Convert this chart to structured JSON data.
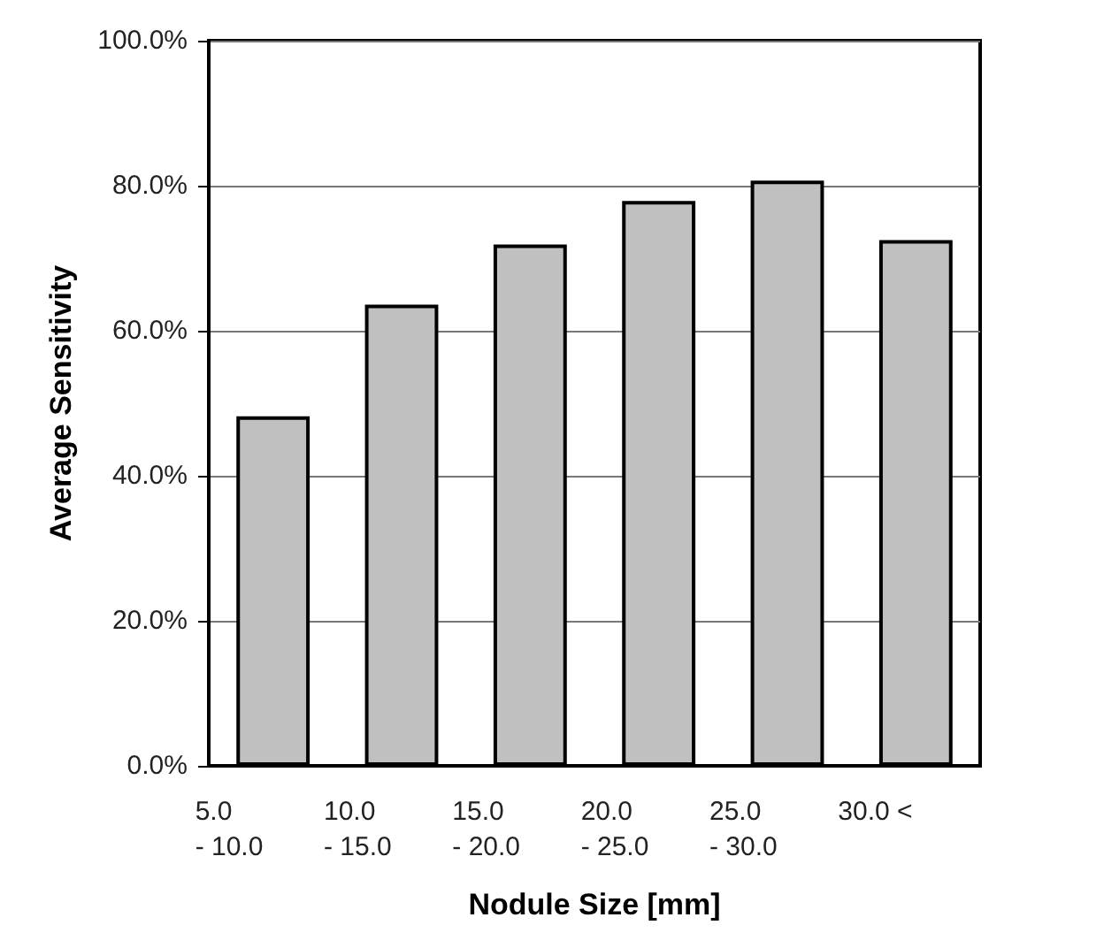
{
  "chart_data": {
    "type": "bar",
    "xlabel": "Nodule Size [mm]",
    "ylabel": "Average Sensitivity",
    "categories": [
      "5.0\n- 10.0",
      "10.0\n- 15.0",
      "15.0\n- 20.0",
      "20.0\n- 25.0",
      "25.0\n- 30.0",
      "30.0 <"
    ],
    "values": [
      48.2,
      63.6,
      71.9,
      77.9,
      80.7,
      72.5
    ],
    "color": "#c0c0c0",
    "ylim": [
      0,
      100
    ],
    "yticks": [
      {
        "value": 0,
        "label": "0.0%"
      },
      {
        "value": 20,
        "label": "20.0%"
      },
      {
        "value": 40,
        "label": "40.0%"
      },
      {
        "value": 60,
        "label": "60.0%"
      },
      {
        "value": 80,
        "label": "80.0%"
      },
      {
        "value": 100,
        "label": "100.0%"
      }
    ],
    "grid": "y"
  }
}
